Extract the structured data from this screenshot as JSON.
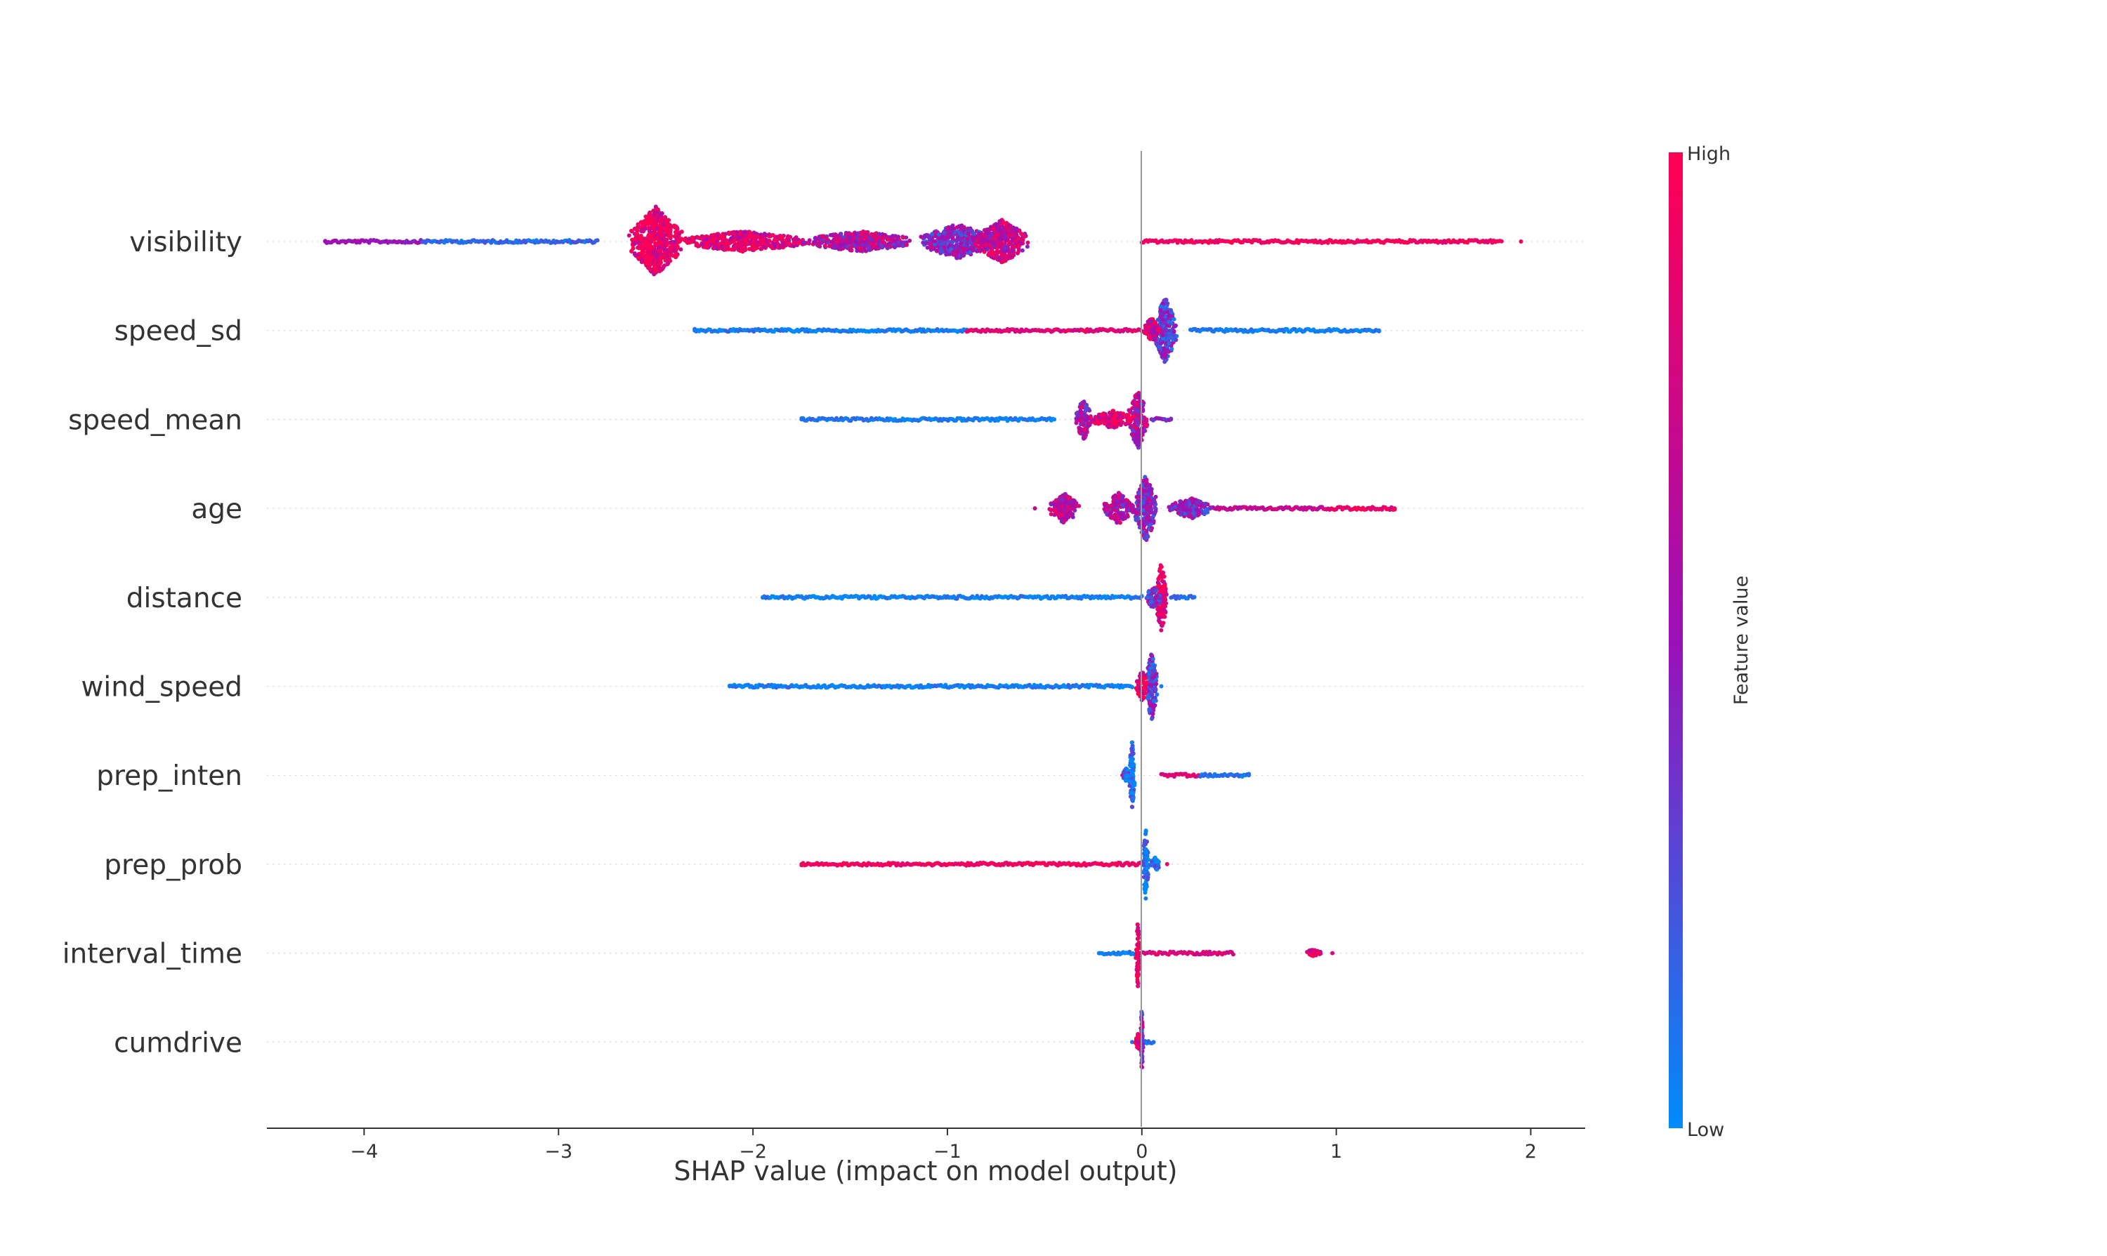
{
  "chart_data": {
    "type": "scatter",
    "subtype": "beeswarm",
    "title": "",
    "xlabel": "SHAP value (impact on model output)",
    "ylabel": "",
    "xlim": [
      -4.5,
      2.28
    ],
    "x_ticks": [
      -4,
      -3,
      -2,
      -1,
      0,
      1,
      2
    ],
    "x_tick_labels": [
      "−4",
      "−3",
      "−2",
      "−1",
      "0",
      "1",
      "2"
    ],
    "grid": false,
    "colorbar": {
      "title": "Feature value",
      "high_label": "High",
      "low_label": "Low",
      "high_color": "#ff0052",
      "mid_color": "#9b10b8",
      "low_color": "#008bfb"
    },
    "features": [
      {
        "name": "visibility",
        "range": [
          -4.2,
          1.95
        ],
        "clusters": [
          {
            "center": -2.5,
            "spread": 0.14,
            "height": 1.0,
            "fv": 0.9
          },
          {
            "center": -2.05,
            "spread": 0.35,
            "height": 0.3,
            "fv": 0.85
          },
          {
            "center": -1.45,
            "spread": 0.3,
            "height": 0.3,
            "fv": 0.6
          },
          {
            "center": -0.95,
            "spread": 0.2,
            "height": 0.5,
            "fv": 0.45
          },
          {
            "center": -0.72,
            "spread": 0.14,
            "height": 0.62,
            "fv": 0.7
          }
        ],
        "tails": [
          {
            "from": -4.2,
            "to": -3.7,
            "fv": 0.5
          },
          {
            "from": -3.7,
            "to": -2.8,
            "fv": 0.15
          },
          {
            "from": 0.0,
            "to": 1.85,
            "fv": 0.95
          }
        ]
      },
      {
        "name": "speed_sd",
        "range": [
          -2.3,
          1.22
        ],
        "clusters": [
          {
            "center": 0.12,
            "spread": 0.06,
            "height": 0.95,
            "fv": 0.35
          },
          {
            "center": 0.05,
            "spread": 0.05,
            "height": 0.35,
            "fv": 0.75
          }
        ],
        "tails": [
          {
            "from": -2.3,
            "to": -0.9,
            "fv": 0.05
          },
          {
            "from": -0.9,
            "to": 0.0,
            "fv": 0.85
          },
          {
            "from": 0.25,
            "to": 1.22,
            "fv": 0.05
          }
        ]
      },
      {
        "name": "speed_mean",
        "range": [
          -1.75,
          0.15
        ],
        "clusters": [
          {
            "center": -0.3,
            "spread": 0.04,
            "height": 0.6,
            "fv": 0.55
          },
          {
            "center": -0.02,
            "spread": 0.05,
            "height": 0.85,
            "fv": 0.6
          },
          {
            "center": -0.15,
            "spread": 0.12,
            "height": 0.25,
            "fv": 0.85
          }
        ],
        "tails": [
          {
            "from": -1.75,
            "to": -1.35,
            "fv": 0.1
          },
          {
            "from": -1.35,
            "to": -0.45,
            "fv": 0.05
          },
          {
            "from": 0.05,
            "to": 0.15,
            "fv": 0.4
          }
        ]
      },
      {
        "name": "age",
        "range": [
          -0.55,
          1.3
        ],
        "clusters": [
          {
            "center": -0.4,
            "spread": 0.08,
            "height": 0.45,
            "fv": 0.65
          },
          {
            "center": -0.12,
            "spread": 0.08,
            "height": 0.45,
            "fv": 0.6
          },
          {
            "center": 0.02,
            "spread": 0.06,
            "height": 0.95,
            "fv": 0.45
          },
          {
            "center": 0.25,
            "spread": 0.12,
            "height": 0.3,
            "fv": 0.4
          }
        ],
        "tails": [
          {
            "from": 0.35,
            "to": 0.95,
            "fv": 0.7
          },
          {
            "from": 0.95,
            "to": 1.3,
            "fv": 0.9
          }
        ]
      },
      {
        "name": "distance",
        "range": [
          -1.95,
          0.27
        ],
        "clusters": [
          {
            "center": 0.1,
            "spread": 0.03,
            "height": 1.0,
            "fv": 0.85
          },
          {
            "center": 0.06,
            "spread": 0.04,
            "height": 0.35,
            "fv": 0.4
          }
        ],
        "tails": [
          {
            "from": -1.95,
            "to": 0.0,
            "fv": 0.05
          },
          {
            "from": 0.15,
            "to": 0.27,
            "fv": 0.1
          }
        ]
      },
      {
        "name": "wind_speed",
        "range": [
          -2.12,
          0.1
        ],
        "clusters": [
          {
            "center": 0.05,
            "spread": 0.03,
            "height": 1.0,
            "fv": 0.35
          },
          {
            "center": 0.0,
            "spread": 0.03,
            "height": 0.45,
            "fv": 0.85
          }
        ],
        "tails": [
          {
            "from": -2.12,
            "to": -0.05,
            "fv": 0.05
          }
        ]
      },
      {
        "name": "prep_inten",
        "range": [
          -0.1,
          0.55
        ],
        "clusters": [
          {
            "center": -0.05,
            "spread": 0.015,
            "height": 1.0,
            "fv": 0.05
          },
          {
            "center": -0.08,
            "spread": 0.02,
            "height": 0.2,
            "fv": 0.05
          }
        ],
        "tails": [
          {
            "from": 0.1,
            "to": 0.3,
            "fv": 0.85
          },
          {
            "from": 0.3,
            "to": 0.55,
            "fv": 0.1
          }
        ]
      },
      {
        "name": "prep_prob",
        "range": [
          -1.75,
          0.13
        ],
        "clusters": [
          {
            "center": 0.02,
            "spread": 0.015,
            "height": 1.0,
            "fv": 0.05
          },
          {
            "center": 0.07,
            "spread": 0.03,
            "height": 0.2,
            "fv": 0.05
          }
        ],
        "tails": [
          {
            "from": -1.75,
            "to": 0.0,
            "fv": 0.95
          }
        ]
      },
      {
        "name": "interval_time",
        "range": [
          -0.22,
          0.98
        ],
        "clusters": [
          {
            "center": -0.02,
            "spread": 0.012,
            "height": 1.0,
            "fv": 0.95
          },
          {
            "center": 0.88,
            "spread": 0.05,
            "height": 0.1,
            "fv": 0.92
          }
        ],
        "tails": [
          {
            "from": -0.22,
            "to": -0.03,
            "fv": 0.05
          },
          {
            "from": 0.0,
            "to": 0.47,
            "fv": 0.8
          }
        ]
      },
      {
        "name": "cumdrive",
        "range": [
          -0.05,
          0.06
        ],
        "clusters": [
          {
            "center": 0.0,
            "spread": 0.008,
            "height": 1.0,
            "fv": 0.5
          },
          {
            "center": -0.02,
            "spread": 0.015,
            "height": 0.25,
            "fv": 0.95
          }
        ],
        "tails": [
          {
            "from": 0.0,
            "to": 0.06,
            "fv": 0.1
          }
        ]
      }
    ]
  }
}
